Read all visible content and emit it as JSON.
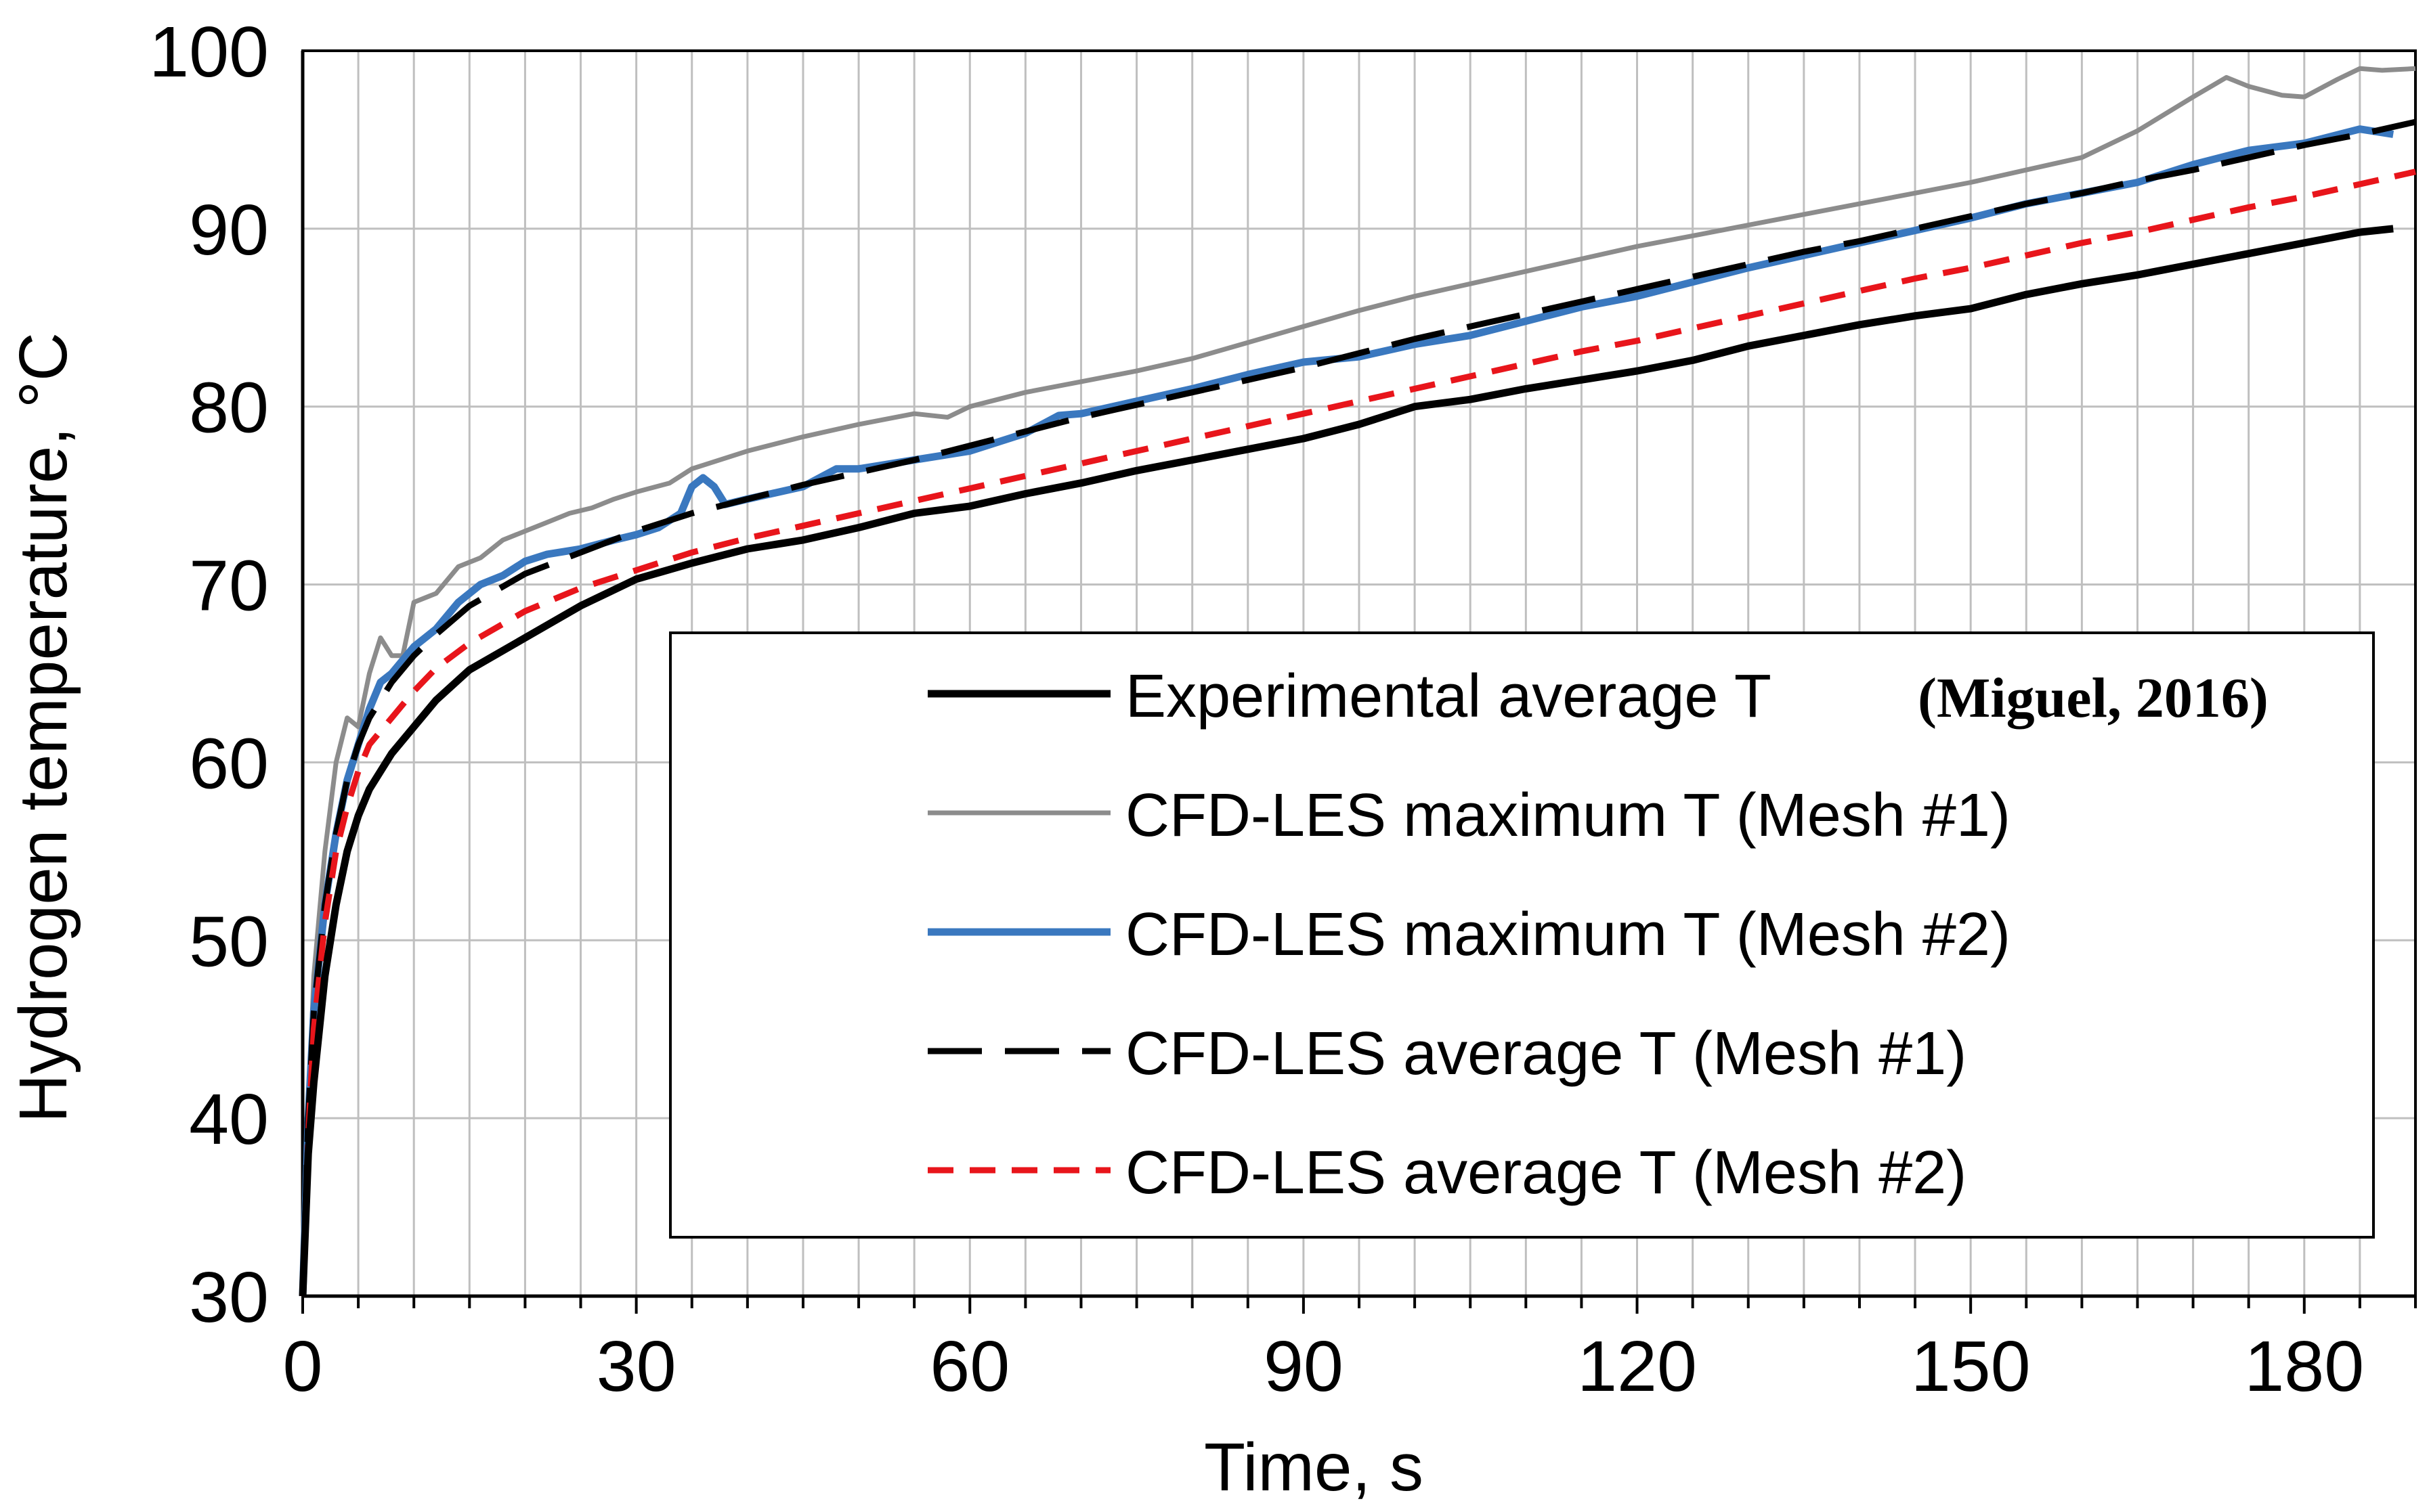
{
  "chart_data": {
    "type": "line",
    "title": "",
    "xlabel": "Time, s",
    "ylabel": "Hydrogen temperature, °C",
    "xlim": [
      0,
      190
    ],
    "ylim": [
      30,
      100
    ],
    "x_ticks": [
      0,
      30,
      60,
      90,
      120,
      150,
      180
    ],
    "y_ticks": [
      30,
      40,
      50,
      60,
      70,
      80,
      90,
      100
    ],
    "x_tick_labels": [
      "0",
      "30",
      "60",
      "90",
      "120",
      "150",
      "180"
    ],
    "y_tick_labels": [
      "30",
      "40",
      "50",
      "60",
      "70",
      "80",
      "90",
      "100"
    ],
    "grid": true,
    "legend_position": "bottom-right",
    "series": [
      {
        "name": "Experimental average T",
        "citation": "(Miguel, 2016)",
        "color": "#000000",
        "style": "solid-thick",
        "x": [
          0,
          0.5,
          1,
          2,
          3,
          4,
          5,
          6,
          8,
          10,
          12,
          15,
          20,
          25,
          30,
          35,
          40,
          45,
          50,
          55,
          60,
          65,
          70,
          75,
          80,
          85,
          90,
          95,
          100,
          105,
          110,
          115,
          120,
          125,
          130,
          135,
          140,
          145,
          150,
          155,
          160,
          165,
          170,
          175,
          180,
          185,
          188
        ],
        "y": [
          30,
          38,
          42,
          48,
          52,
          55,
          57,
          58.5,
          60.5,
          62,
          63.5,
          65.2,
          67,
          68.8,
          70.3,
          71.2,
          72,
          72.5,
          73.2,
          74,
          74.4,
          75.1,
          75.7,
          76.4,
          77,
          77.6,
          78.2,
          79,
          80,
          80.4,
          81,
          81.5,
          82,
          82.6,
          83.4,
          84,
          84.6,
          85.1,
          85.5,
          86.3,
          86.9,
          87.4,
          88,
          88.6,
          89.2,
          89.8,
          90
        ]
      },
      {
        "name": "CFD-LES maximum T (Mesh #1)",
        "color": "#8c8c8c",
        "style": "solid-thin",
        "x": [
          0,
          0.5,
          1,
          2,
          3,
          4,
          5,
          6,
          7,
          8,
          9,
          10,
          12,
          14,
          16,
          18,
          20,
          22,
          24,
          26,
          28,
          30,
          33,
          35,
          38,
          40,
          45,
          50,
          55,
          58,
          60,
          65,
          70,
          75,
          80,
          85,
          90,
          95,
          100,
          105,
          110,
          115,
          120,
          125,
          130,
          135,
          140,
          145,
          150,
          155,
          160,
          165,
          170,
          173,
          175,
          178,
          180,
          183,
          185,
          187,
          190
        ],
        "y": [
          30,
          40,
          48,
          55,
          60,
          62.5,
          62,
          65,
          67,
          66,
          66,
          69,
          69.5,
          71,
          71.5,
          72.5,
          73,
          73.5,
          74,
          74.3,
          74.8,
          75.2,
          75.7,
          76.5,
          77.1,
          77.5,
          78.3,
          79,
          79.6,
          79.4,
          80,
          80.8,
          81.4,
          82,
          82.7,
          83.6,
          84.5,
          85.4,
          86.2,
          86.9,
          87.6,
          88.3,
          89,
          89.6,
          90.2,
          90.8,
          91.4,
          92,
          92.6,
          93.3,
          94,
          95.5,
          97.4,
          98.5,
          98,
          97.5,
          97.4,
          98.4,
          99,
          98.9,
          99
        ]
      },
      {
        "name": "CFD-LES maximum T (Mesh #2)",
        "color": "#3a78bf",
        "style": "solid-thick",
        "x": [
          0,
          0.5,
          1,
          2,
          3,
          4,
          5,
          6,
          7,
          8,
          10,
          12,
          14,
          16,
          18,
          20,
          22,
          25,
          28,
          30,
          32,
          34,
          35,
          36,
          37,
          38,
          40,
          45,
          48,
          50,
          55,
          60,
          65,
          68,
          70,
          75,
          80,
          85,
          90,
          95,
          100,
          105,
          110,
          115,
          120,
          125,
          130,
          135,
          140,
          145,
          150,
          155,
          160,
          165,
          170,
          175,
          180,
          185,
          188
        ],
        "y": [
          30,
          40,
          46,
          52,
          56,
          59,
          61,
          63,
          64.5,
          65,
          66.5,
          67.5,
          69,
          70,
          70.5,
          71.3,
          71.7,
          72,
          72.5,
          72.8,
          73.2,
          74,
          75.5,
          76,
          75.5,
          74.5,
          74.8,
          75.5,
          76.5,
          76.5,
          77,
          77.5,
          78.5,
          79.5,
          79.6,
          80.3,
          81,
          81.8,
          82.5,
          82.8,
          83.5,
          84,
          84.8,
          85.6,
          86.2,
          87,
          87.8,
          88.5,
          89.2,
          89.9,
          90.6,
          91.4,
          92,
          92.6,
          93.6,
          94.4,
          94.8,
          95.6,
          95.3
        ]
      },
      {
        "name": "CFD-LES average T (Mesh #1)",
        "color": "#000000",
        "style": "long-dash",
        "x": [
          0,
          0.5,
          1,
          2,
          3,
          4,
          5,
          6,
          8,
          10,
          12,
          15,
          20,
          25,
          30,
          35,
          40,
          45,
          50,
          55,
          60,
          65,
          70,
          75,
          80,
          85,
          90,
          95,
          100,
          105,
          110,
          115,
          120,
          125,
          130,
          135,
          140,
          145,
          150,
          155,
          160,
          165,
          170,
          175,
          180,
          185,
          190
        ],
        "y": [
          30,
          40,
          46,
          52,
          56,
          59,
          61,
          62.5,
          64.5,
          66,
          67.2,
          68.8,
          70.6,
          71.8,
          73,
          74,
          74.8,
          75.6,
          76.3,
          77,
          77.8,
          78.6,
          79.4,
          80.1,
          80.8,
          81.5,
          82.2,
          83,
          83.8,
          84.5,
          85.2,
          85.9,
          86.6,
          87.3,
          88,
          88.7,
          89.3,
          90,
          90.7,
          91.4,
          92,
          92.7,
          93.3,
          94,
          94.7,
          95.3,
          96
        ]
      },
      {
        "name": "CFD-LES average T (Mesh #2)",
        "color": "#e8151b",
        "style": "short-dash",
        "x": [
          0,
          0.5,
          1,
          2,
          3,
          4,
          5,
          6,
          8,
          10,
          12,
          15,
          20,
          25,
          30,
          35,
          40,
          45,
          50,
          55,
          60,
          65,
          70,
          75,
          80,
          85,
          90,
          95,
          100,
          105,
          110,
          115,
          120,
          125,
          130,
          135,
          140,
          145,
          150,
          155,
          160,
          165,
          170,
          175,
          180,
          185,
          190
        ],
        "y": [
          30,
          39,
          45,
          51,
          55,
          57.5,
          59.5,
          61,
          62.5,
          64,
          65.3,
          66.7,
          68.5,
          69.8,
          70.8,
          71.8,
          72.6,
          73.3,
          74,
          74.7,
          75.4,
          76.1,
          76.8,
          77.5,
          78.2,
          78.9,
          79.6,
          80.3,
          81,
          81.7,
          82.4,
          83.1,
          83.7,
          84.4,
          85.1,
          85.8,
          86.5,
          87.2,
          87.8,
          88.5,
          89.2,
          89.8,
          90.5,
          91.2,
          91.8,
          92.5,
          93.2
        ]
      }
    ]
  }
}
